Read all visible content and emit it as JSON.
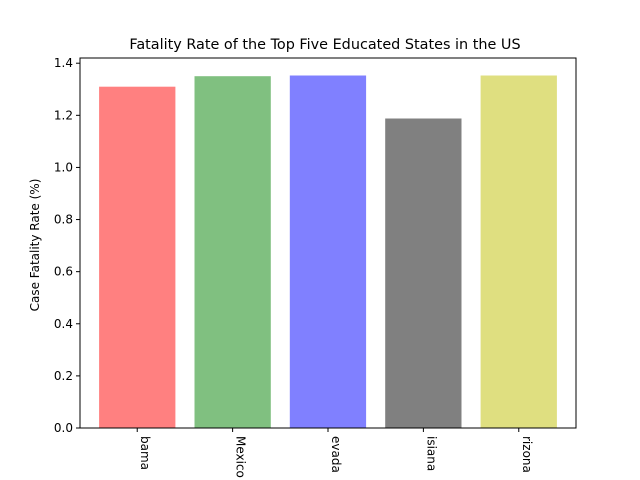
{
  "chart_data": {
    "type": "bar",
    "title": "Fatality Rate of the Top Five Educated States in the US",
    "xlabel": "",
    "ylabel": "Case Fatality Rate (%)",
    "categories": [
      "Alabama",
      "New Mexico",
      "Nevada",
      "Louisiana",
      "Arizona"
    ],
    "category_labels_visible": [
      "bama",
      "Mexico",
      "evada",
      "isiana",
      "rizona"
    ],
    "values": [
      1.31,
      1.35,
      1.353,
      1.188,
      1.353
    ],
    "colors": [
      "#ff8080",
      "#80c080",
      "#8080ff",
      "#808080",
      "#dfdf80"
    ],
    "ylim": [
      0,
      1.42
    ],
    "yticks": [
      0.0,
      0.2,
      0.4,
      0.6,
      0.8,
      1.0,
      1.2,
      1.4
    ],
    "ytick_labels": [
      "0.0",
      "0.2",
      "0.4",
      "0.6",
      "0.8",
      "1.0",
      "1.2",
      "1.4"
    ],
    "grid": false,
    "legend": "none"
  }
}
